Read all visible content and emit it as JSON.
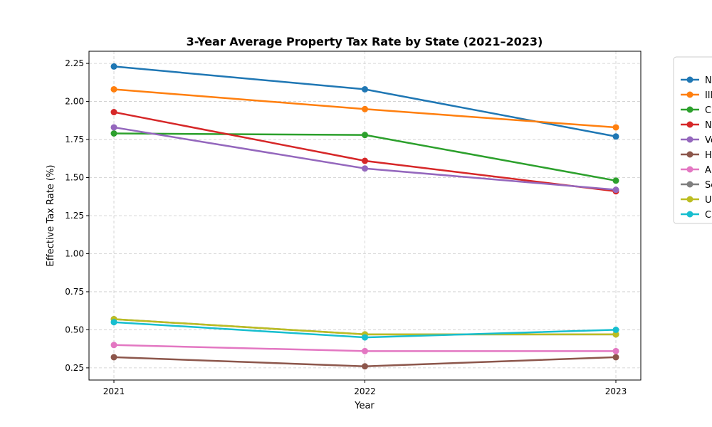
{
  "chart_data": {
    "type": "line",
    "title": "3-Year Average Property Tax Rate by State (2021–2023)",
    "xlabel": "Year",
    "ylabel": "Effective Tax Rate (%)",
    "x": [
      "2021",
      "2022",
      "2023"
    ],
    "ylim": [
      0.17,
      2.33
    ],
    "yticks": [
      "0.25",
      "0.50",
      "0.75",
      "1.00",
      "1.25",
      "1.50",
      "1.75",
      "2.00",
      "2.25"
    ],
    "grid": true,
    "grid_style": "dashed",
    "legend_position": "right",
    "series": [
      {
        "name": "N",
        "color": "#1f77b4",
        "values": [
          2.23,
          2.08,
          1.77
        ]
      },
      {
        "name": "Ill",
        "color": "#ff7f0e",
        "values": [
          2.08,
          1.95,
          1.83
        ]
      },
      {
        "name": "C",
        "color": "#2ca02c",
        "values": [
          1.79,
          1.78,
          1.48
        ]
      },
      {
        "name": "N",
        "color": "#d62728",
        "values": [
          1.93,
          1.61,
          1.41
        ]
      },
      {
        "name": "Ve",
        "color": "#9467bd",
        "values": [
          1.83,
          1.56,
          1.42
        ]
      },
      {
        "name": "H",
        "color": "#8c564b",
        "values": [
          0.32,
          0.26,
          0.32
        ]
      },
      {
        "name": "Al",
        "color": "#e377c2",
        "values": [
          0.4,
          0.36,
          0.36
        ]
      },
      {
        "name": "Sc",
        "color": "#7f7f7f",
        "values": [
          0.57,
          0.47,
          0.47
        ]
      },
      {
        "name": "U",
        "color": "#bcbd22",
        "values": [
          0.57,
          0.47,
          0.47
        ]
      },
      {
        "name": "C",
        "color": "#17becf",
        "values": [
          0.55,
          0.45,
          0.5
        ]
      }
    ]
  }
}
